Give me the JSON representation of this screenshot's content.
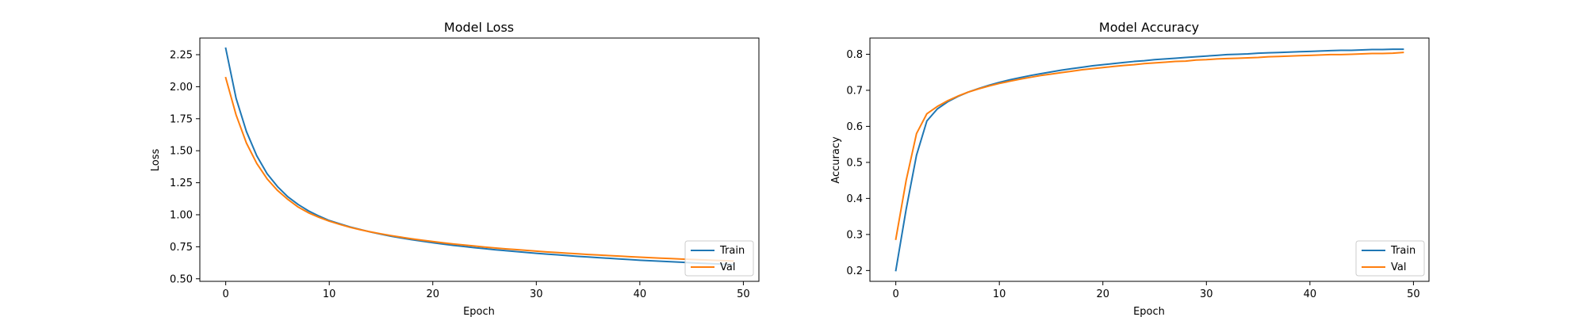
{
  "colors": {
    "train": "#1f77b4",
    "val": "#ff7f0e"
  },
  "chart_data": [
    {
      "type": "line",
      "title": "Model Loss",
      "xlabel": "Epoch",
      "ylabel": "Loss",
      "xlim": [
        -2.5,
        51.5
      ],
      "ylim": [
        0.48,
        2.38
      ],
      "xticks": [
        0,
        10,
        20,
        30,
        40,
        50
      ],
      "yticks": [
        0.5,
        0.75,
        1.0,
        1.25,
        1.5,
        1.75,
        2.0,
        2.25
      ],
      "ytick_labels": [
        "0.50",
        "0.75",
        "1.00",
        "1.25",
        "1.50",
        "1.75",
        "2.00",
        "2.25"
      ],
      "grid": false,
      "legend": "lower-right",
      "series": [
        {
          "name": "Train",
          "values": [
            2.3,
            1.91,
            1.65,
            1.46,
            1.32,
            1.22,
            1.14,
            1.08,
            1.03,
            0.99,
            0.955,
            0.93,
            0.905,
            0.885,
            0.865,
            0.848,
            0.832,
            0.818,
            0.805,
            0.793,
            0.782,
            0.771,
            0.761,
            0.752,
            0.743,
            0.735,
            0.727,
            0.72,
            0.713,
            0.706,
            0.699,
            0.693,
            0.687,
            0.681,
            0.675,
            0.67,
            0.665,
            0.66,
            0.655,
            0.65,
            0.645,
            0.641,
            0.637,
            0.633,
            0.629,
            0.625,
            0.621,
            0.618,
            0.615,
            0.612
          ]
        },
        {
          "name": "Val",
          "values": [
            2.07,
            1.78,
            1.56,
            1.4,
            1.28,
            1.19,
            1.12,
            1.06,
            1.015,
            0.98,
            0.95,
            0.925,
            0.902,
            0.883,
            0.866,
            0.851,
            0.837,
            0.824,
            0.812,
            0.801,
            0.791,
            0.781,
            0.772,
            0.764,
            0.756,
            0.748,
            0.741,
            0.734,
            0.728,
            0.722,
            0.716,
            0.71,
            0.705,
            0.7,
            0.695,
            0.69,
            0.686,
            0.681,
            0.677,
            0.673,
            0.669,
            0.665,
            0.661,
            0.658,
            0.654,
            0.651,
            0.648,
            0.645,
            0.642,
            0.639
          ]
        }
      ]
    },
    {
      "type": "line",
      "title": "Model Accuracy",
      "xlabel": "Epoch",
      "ylabel": "Accuracy",
      "xlim": [
        -2.5,
        51.5
      ],
      "ylim": [
        0.17,
        0.845
      ],
      "xticks": [
        0,
        10,
        20,
        30,
        40,
        50
      ],
      "yticks": [
        0.2,
        0.3,
        0.4,
        0.5,
        0.6,
        0.7,
        0.8
      ],
      "ytick_labels": [
        "0.2",
        "0.3",
        "0.4",
        "0.5",
        "0.6",
        "0.7",
        "0.8"
      ],
      "grid": false,
      "legend": "lower-right",
      "series": [
        {
          "name": "Train",
          "values": [
            0.2,
            0.37,
            0.52,
            0.615,
            0.648,
            0.668,
            0.683,
            0.695,
            0.705,
            0.714,
            0.722,
            0.729,
            0.735,
            0.741,
            0.746,
            0.751,
            0.756,
            0.76,
            0.764,
            0.768,
            0.771,
            0.774,
            0.777,
            0.78,
            0.782,
            0.785,
            0.787,
            0.789,
            0.791,
            0.793,
            0.795,
            0.797,
            0.799,
            0.8,
            0.801,
            0.803,
            0.804,
            0.805,
            0.806,
            0.807,
            0.808,
            0.809,
            0.81,
            0.811,
            0.811,
            0.812,
            0.813,
            0.813,
            0.814,
            0.814
          ]
        },
        {
          "name": "Val",
          "values": [
            0.287,
            0.45,
            0.58,
            0.635,
            0.655,
            0.671,
            0.684,
            0.695,
            0.704,
            0.712,
            0.719,
            0.725,
            0.731,
            0.736,
            0.741,
            0.745,
            0.749,
            0.753,
            0.757,
            0.76,
            0.763,
            0.766,
            0.769,
            0.771,
            0.774,
            0.776,
            0.778,
            0.78,
            0.781,
            0.784,
            0.785,
            0.787,
            0.788,
            0.789,
            0.79,
            0.791,
            0.793,
            0.794,
            0.795,
            0.796,
            0.797,
            0.798,
            0.799,
            0.799,
            0.8,
            0.801,
            0.802,
            0.802,
            0.803,
            0.805
          ]
        }
      ]
    }
  ]
}
